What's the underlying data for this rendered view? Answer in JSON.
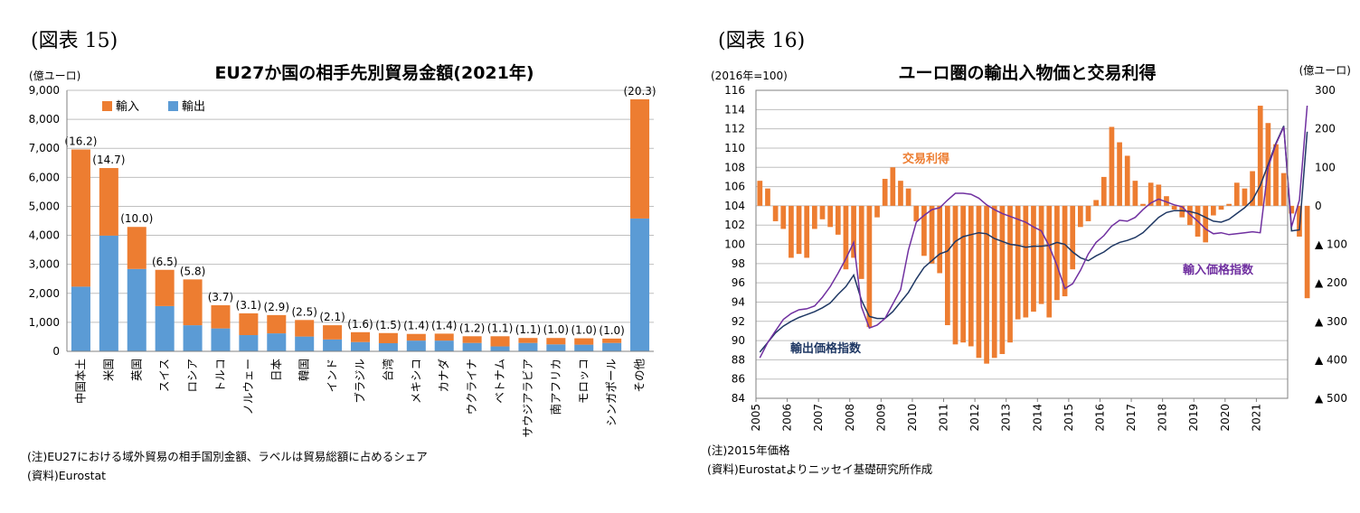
{
  "left": {
    "figure_label": "(図表 15)",
    "y_unit": "(億ユーロ)",
    "note": "(注)EU27における域外貿易の相手国別金額、ラベルは貿易総額に占めるシェア",
    "source": "(資料)Eurostat"
  },
  "right": {
    "figure_label": "(図表 16)",
    "left_unit": "(2016年=100)",
    "right_unit": "(億ユーロ)",
    "note": "(注)2015年価格",
    "source": "(資料)Eurostatよりニッセイ基礎研究所作成"
  },
  "colors": {
    "import": "#ed7d31",
    "export": "#5b9bd5",
    "trade": "#ed7d31",
    "export_line": "#1f3864",
    "import_line": "#7030a0",
    "grid": "#bfbfbf"
  },
  "chart_data": [
    {
      "type": "bar",
      "stacked": true,
      "title": "EU27か国の相手先別貿易金額(2021年)",
      "ylabel": "(億ユーロ)",
      "ylim": [
        0,
        9000
      ],
      "yticks": [
        0,
        1000,
        2000,
        3000,
        4000,
        5000,
        6000,
        7000,
        8000,
        9000
      ],
      "ytick_labels": [
        "0",
        "1,000",
        "2,000",
        "3,000",
        "4,000",
        "5,000",
        "6,000",
        "7,000",
        "8,000",
        "9,000"
      ],
      "legend_position": "top-left",
      "categories": [
        "中国本土",
        "米国",
        "英国",
        "スイス",
        "ロシア",
        "トルコ",
        "ノルウェー",
        "日本",
        "韓国",
        "インド",
        "ブラジル",
        "台湾",
        "メキシコ",
        "カナダ",
        "ウクライナ",
        "ベトナム",
        "サウジアラビア",
        "南アフリカ",
        "モロッコ",
        "シンガポール",
        "その他"
      ],
      "series": [
        {
          "name": "輸出",
          "values": [
            2230,
            3990,
            2840,
            1560,
            900,
            790,
            560,
            620,
            510,
            410,
            320,
            280,
            370,
            370,
            290,
            170,
            290,
            240,
            230,
            290,
            4580
          ]
        },
        {
          "name": "輸入",
          "values": [
            4730,
            2330,
            1450,
            1250,
            1580,
            800,
            750,
            630,
            570,
            490,
            340,
            350,
            230,
            240,
            230,
            350,
            170,
            220,
            220,
            150,
            4110
          ]
        }
      ],
      "data_labels": [
        "(16.2)",
        "(14.7)",
        "(10.0)",
        "(6.5)",
        "(5.8)",
        "(3.7)",
        "(3.1)",
        "(2.9)",
        "(2.5)",
        "(2.1)",
        "(1.6)",
        "(1.5)",
        "(1.4)",
        "(1.4)",
        "(1.2)",
        "(1.1)",
        "(1.1)",
        "(1.0)",
        "(1.0)",
        "(1.0)",
        "(20.3)"
      ]
    },
    {
      "type": "line",
      "title": "ユーロ圏の輸出入物価と交易利得",
      "ylabel": "(2016年=100)",
      "y2label": "(億ユーロ)",
      "ylim": [
        84,
        116
      ],
      "yticks": [
        84,
        86,
        88,
        90,
        92,
        94,
        96,
        98,
        100,
        102,
        104,
        106,
        108,
        110,
        112,
        114,
        116
      ],
      "y2lim": [
        -500,
        300
      ],
      "y2ticks": [
        300,
        200,
        100,
        0,
        -100,
        -200,
        -300,
        -400,
        -500
      ],
      "y2tick_labels": [
        "300",
        "200",
        "100",
        "0",
        "▲ 100",
        "▲ 200",
        "▲ 300",
        "▲ 400",
        "▲ 500"
      ],
      "x_start": 2005,
      "xticks": [
        "2005",
        "2006",
        "2007",
        "2008",
        "2009",
        "2010",
        "2011",
        "2012",
        "2013",
        "2014",
        "2015",
        "2016",
        "2017",
        "2018",
        "2019",
        "2020",
        "2021"
      ],
      "quarters_per_year": 4,
      "series": [
        {
          "name": "交易利得",
          "type": "bar",
          "axis": "right",
          "values": [
            65,
            45,
            -40,
            -60,
            -135,
            -125,
            -135,
            -60,
            -35,
            -55,
            -75,
            -165,
            -135,
            -190,
            -315,
            -30,
            70,
            100,
            65,
            45,
            -40,
            -130,
            -150,
            -175,
            -310,
            -360,
            -355,
            -365,
            -395,
            -410,
            -395,
            -385,
            -355,
            -295,
            -290,
            -275,
            -255,
            -290,
            -245,
            -235,
            -165,
            -55,
            -40,
            15,
            75,
            205,
            165,
            130,
            65,
            5,
            60,
            55,
            25,
            -10,
            -30,
            -50,
            -80,
            -95,
            -25,
            -10,
            5,
            60,
            45,
            90,
            260,
            215,
            160,
            85,
            -20,
            -80,
            -240
          ]
        },
        {
          "name": "輸出価格指数",
          "type": "line",
          "axis": "left",
          "values": [
            88.8,
            89.8,
            90.8,
            91.5,
            92.0,
            92.4,
            92.7,
            93.0,
            93.4,
            93.9,
            94.8,
            95.6,
            96.8,
            94.2,
            92.5,
            92.3,
            92.3,
            93.0,
            94.0,
            95.0,
            96.4,
            97.6,
            98.3,
            99.0,
            99.3,
            100.3,
            100.8,
            101.0,
            101.2,
            101.1,
            100.6,
            100.3,
            100.0,
            99.9,
            99.7,
            99.8,
            99.8,
            99.9,
            100.2,
            100.0,
            99.2,
            98.6,
            98.3,
            98.8,
            99.2,
            99.8,
            100.2,
            100.4,
            100.7,
            101.2,
            102.0,
            102.8,
            103.3,
            103.5,
            103.5,
            103.4,
            103.2,
            102.8,
            102.4,
            102.3,
            102.6,
            103.2,
            103.8,
            104.6,
            106.1,
            108.3,
            110.5,
            112.3,
            101.4,
            101.5,
            111.7
          ]
        },
        {
          "name": "輸入価格指数",
          "type": "line",
          "axis": "left",
          "values": [
            88.2,
            89.8,
            91.0,
            92.2,
            92.8,
            93.2,
            93.3,
            93.6,
            94.5,
            95.6,
            97.0,
            98.5,
            100.2,
            93.5,
            91.3,
            91.6,
            92.3,
            93.8,
            95.3,
            99.4,
            102.3,
            103.0,
            103.6,
            103.8,
            104.6,
            105.3,
            105.3,
            105.2,
            104.8,
            104.1,
            103.6,
            103.2,
            102.9,
            102.6,
            102.3,
            101.8,
            101.4,
            99.8,
            97.8,
            95.4,
            95.9,
            97.3,
            99.0,
            100.2,
            100.9,
            101.9,
            102.5,
            102.4,
            102.8,
            103.6,
            104.3,
            104.7,
            104.4,
            104.1,
            103.9,
            103.1,
            102.4,
            101.6,
            101.1,
            101.2,
            101.0,
            101.1,
            101.2,
            101.3,
            101.2,
            108.0,
            110.4,
            112.2,
            101.8,
            104.6,
            114.4
          ]
        }
      ],
      "annotations": [
        "交易利得",
        "輸入価格指数",
        "輸出価格指数"
      ]
    }
  ]
}
